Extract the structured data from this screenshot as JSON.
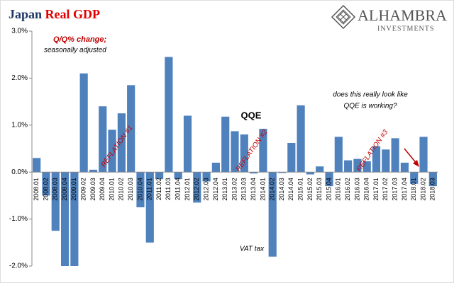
{
  "chart_data": {
    "type": "bar",
    "title": "Japan",
    "title_highlight": "Real GDP",
    "logo": {
      "name": "ALHAMBRA",
      "tagline": "INVESTMENTS"
    },
    "categories": [
      "2008.01",
      "2008.02",
      "2008.03",
      "2008.04",
      "2009.01",
      "2009.02",
      "2009.03",
      "2009.04",
      "2010.01",
      "2010.02",
      "2010.03",
      "2010.04",
      "2011.01",
      "2011.02",
      "2011.03",
      "2011.04",
      "2012.01",
      "2012.02",
      "2012.03",
      "2012.04",
      "2013.01",
      "2013.02",
      "2013.03",
      "2013.04",
      "2014.01",
      "2014.02",
      "2014.03",
      "2014.04",
      "2015.01",
      "2015.02",
      "2015.03",
      "2015.04",
      "2016.01",
      "2016.02",
      "2016.03",
      "2016.04",
      "2017.01",
      "2017.02",
      "2017.03",
      "2017.04",
      "2018.01",
      "2018.02",
      "2018.03"
    ],
    "values": [
      0.3,
      -0.5,
      -1.25,
      -2.0,
      -2.0,
      2.1,
      0.05,
      1.4,
      0.9,
      1.25,
      1.85,
      -0.75,
      -1.5,
      -0.15,
      2.45,
      -0.15,
      1.2,
      -0.65,
      -0.2,
      0.2,
      1.18,
      0.87,
      0.8,
      -0.03,
      0.92,
      -1.8,
      -0.02,
      0.62,
      1.42,
      -0.05,
      0.12,
      -0.3,
      0.75,
      0.25,
      0.28,
      0.23,
      0.55,
      0.48,
      0.72,
      0.2,
      -0.25,
      0.75,
      -0.3
    ],
    "color": "#4f81bd",
    "ylim": [
      -2,
      3
    ],
    "yticks": [
      {
        "value": -2,
        "label": "-2.0%"
      },
      {
        "value": -1,
        "label": "-1.0%"
      },
      {
        "value": 0,
        "label": "0.0%"
      },
      {
        "value": 1,
        "label": "1.0%"
      },
      {
        "value": 2,
        "label": "2.0%"
      },
      {
        "value": 3,
        "label": "3.0%"
      }
    ],
    "grid": false,
    "annotations": [
      "Q/Q% change;",
      "seasonally adjusted",
      "QQE",
      "does this really look like",
      "QQE is working?",
      "VAT tax",
      "REFLATION #1",
      "REFLATION #2",
      "REFLATION #3"
    ]
  }
}
